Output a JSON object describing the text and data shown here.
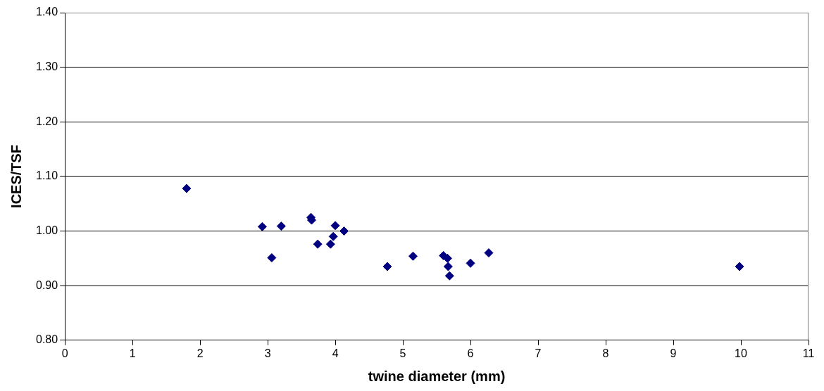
{
  "chart_data": {
    "type": "scatter",
    "xlabel": "twine diameter (mm)",
    "ylabel": "ICES/TSF",
    "series": [
      {
        "color": "#000080",
        "x": [
          1.8,
          2.92,
          3.06,
          3.2,
          3.64,
          3.65,
          3.74,
          3.93,
          3.97,
          4.0,
          4.13,
          4.77,
          5.14,
          5.15,
          5.6,
          5.65,
          5.66,
          5.67,
          5.69,
          6.0,
          6.27,
          9.98
        ],
        "values": [
          1.078,
          1.008,
          0.951,
          1.009,
          1.025,
          1.02,
          0.976,
          0.976,
          0.99,
          1.01,
          1.0,
          0.935,
          null,
          0.954,
          0.955,
          null,
          0.95,
          0.935,
          0.918,
          0.941,
          0.96,
          0.935
        ]
      }
    ],
    "xlim": [
      0,
      11
    ],
    "xticks": [
      0,
      1,
      2,
      3,
      4,
      5,
      6,
      7,
      8,
      9,
      10,
      11
    ],
    "ylim": [
      0.8,
      1.4
    ],
    "yticks": [
      {
        "value": 0.8,
        "label": "0.80"
      },
      {
        "value": 0.9,
        "label": "0.90"
      },
      {
        "value": 1.0,
        "label": "1.00"
      },
      {
        "value": 1.1,
        "label": "1.10"
      },
      {
        "value": 1.2,
        "label": "1.20"
      },
      {
        "value": 1.3,
        "label": "1.30"
      },
      {
        "value": 1.4,
        "label": "1.40"
      }
    ],
    "grid": "y",
    "legend": false,
    "marker": "diamond"
  }
}
